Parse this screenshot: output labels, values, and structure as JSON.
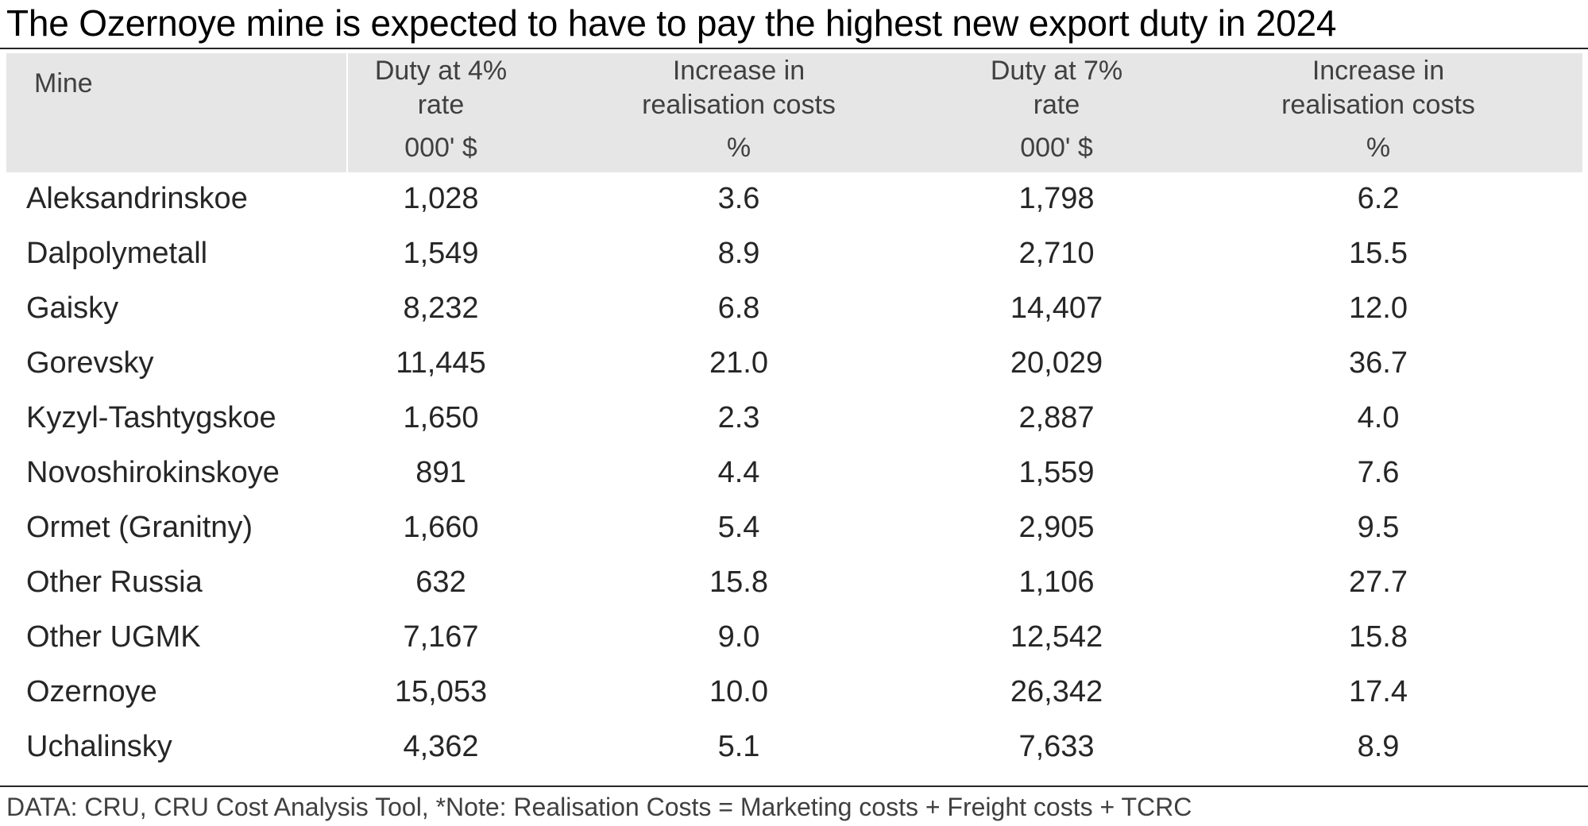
{
  "title": "The Ozernoye mine is expected to have to pay the highest new export duty in 2024",
  "table": {
    "headers": [
      {
        "lines": [
          "Mine"
        ],
        "unit": ""
      },
      {
        "lines": [
          "Duty at 4%",
          "rate"
        ],
        "unit": "000' $"
      },
      {
        "lines": [
          "Increase in",
          "realisation costs"
        ],
        "unit": "%"
      },
      {
        "lines": [
          "Duty at 7%",
          "rate"
        ],
        "unit": "000' $"
      },
      {
        "lines": [
          "Increase in",
          "realisation costs"
        ],
        "unit": "%"
      }
    ],
    "rows": [
      [
        "Aleksandrinskoe",
        "1,028",
        "3.6",
        "1,798",
        "6.2"
      ],
      [
        "Dalpolymetall",
        "1,549",
        "8.9",
        "2,710",
        "15.5"
      ],
      [
        "Gaisky",
        "8,232",
        "6.8",
        "14,407",
        "12.0"
      ],
      [
        "Gorevsky",
        "11,445",
        "21.0",
        "20,029",
        "36.7"
      ],
      [
        "Kyzyl-Tashtygskoe",
        "1,650",
        "2.3",
        "2,887",
        "4.0"
      ],
      [
        "Novoshirokinskoye",
        "891",
        "4.4",
        "1,559",
        "7.6"
      ],
      [
        "Ormet (Granitny)",
        "1,660",
        "5.4",
        "2,905",
        "9.5"
      ],
      [
        "Other Russia",
        "632",
        "15.8",
        "1,106",
        "27.7"
      ],
      [
        "Other UGMK",
        "7,167",
        "9.0",
        "12,542",
        "15.8"
      ],
      [
        "Ozernoye",
        "15,053",
        "10.0",
        "26,342",
        "17.4"
      ],
      [
        "Uchalinsky",
        "4,362",
        "5.1",
        "7,633",
        "8.9"
      ]
    ]
  },
  "source": "DATA: CRU, CRU Cost Analysis Tool, *Note: Realisation Costs = Marketing costs + Freight costs + TCRC"
}
